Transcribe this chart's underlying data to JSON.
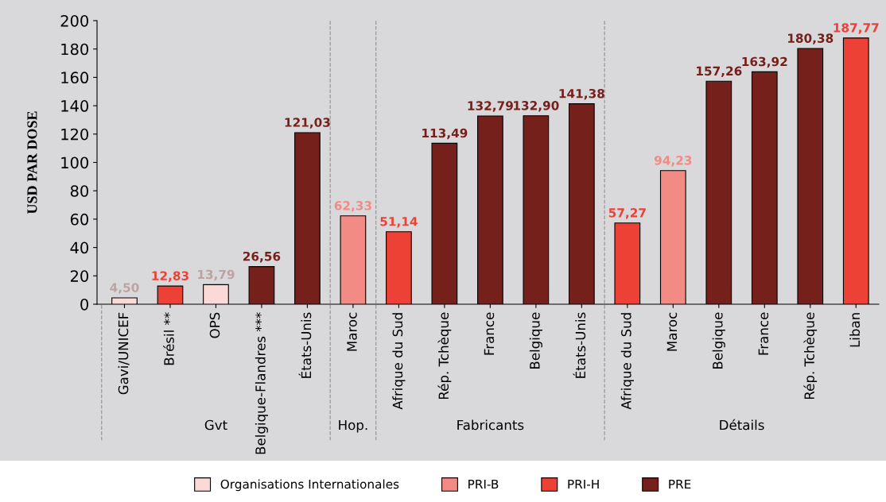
{
  "chart_data": {
    "type": "bar",
    "ylabel": "USD PAR DOSE",
    "categories": [
      "Gavi/UNICEF",
      "Brésil **",
      "OPS",
      "Belgique-Flandres ***",
      "États-Unis",
      "Maroc",
      "Afrique du Sud",
      "Rép. Tchèque",
      "France",
      "Belgique",
      "États-Unis",
      "Afrique du Sud",
      "Maroc",
      "Belgique",
      "France",
      "Rép. Tchèque",
      "Liban"
    ],
    "series": [
      {
        "name": "Organisations Internationales",
        "color": "#fbd9d7",
        "values": [
          4.5,
          null,
          13.79,
          null,
          null,
          null,
          null,
          null,
          null,
          null,
          null,
          null,
          null,
          null,
          null,
          null,
          null
        ],
        "value_labels": [
          "4,50",
          null,
          "13,79",
          null,
          null,
          null,
          null,
          null,
          null,
          null,
          null,
          null,
          null,
          null,
          null,
          null,
          null
        ]
      },
      {
        "name": "PRI-B",
        "color": "#f28b84",
        "values": [
          null,
          null,
          null,
          null,
          null,
          62.33,
          null,
          null,
          null,
          null,
          null,
          null,
          94.23,
          null,
          null,
          null,
          null
        ],
        "value_labels": [
          null,
          null,
          null,
          null,
          null,
          "62,33",
          null,
          null,
          null,
          null,
          null,
          null,
          "94,23",
          null,
          null,
          null,
          null
        ]
      },
      {
        "name": "PRI-H",
        "color": "#ee4136",
        "values": [
          null,
          12.83,
          null,
          null,
          null,
          null,
          51.14,
          null,
          null,
          null,
          null,
          57.27,
          null,
          null,
          null,
          null,
          187.77
        ],
        "value_labels": [
          null,
          "12,83",
          null,
          null,
          null,
          null,
          "51,14",
          null,
          null,
          null,
          null,
          "57,27",
          null,
          null,
          null,
          null,
          "187,77"
        ]
      },
      {
        "name": "PRE",
        "color": "#76201c",
        "values": [
          null,
          null,
          null,
          26.56,
          121.03,
          null,
          null,
          113.49,
          132.79,
          132.9,
          141.38,
          null,
          null,
          157.26,
          163.92,
          180.38,
          null
        ],
        "value_labels": [
          null,
          null,
          null,
          "26,56",
          "121,03",
          null,
          null,
          "113,49",
          "132,79",
          "132,90",
          "141,38",
          null,
          null,
          "157,26",
          "163,92",
          "180,38",
          null
        ]
      }
    ],
    "ylim": [
      0,
      200
    ],
    "yticks": [
      0,
      20,
      40,
      60,
      80,
      100,
      120,
      140,
      160,
      180,
      200
    ],
    "annotations": [
      "Gvt",
      "Hop.",
      "Fabricants",
      "Détails"
    ],
    "legend": "bottom",
    "grid": false
  }
}
